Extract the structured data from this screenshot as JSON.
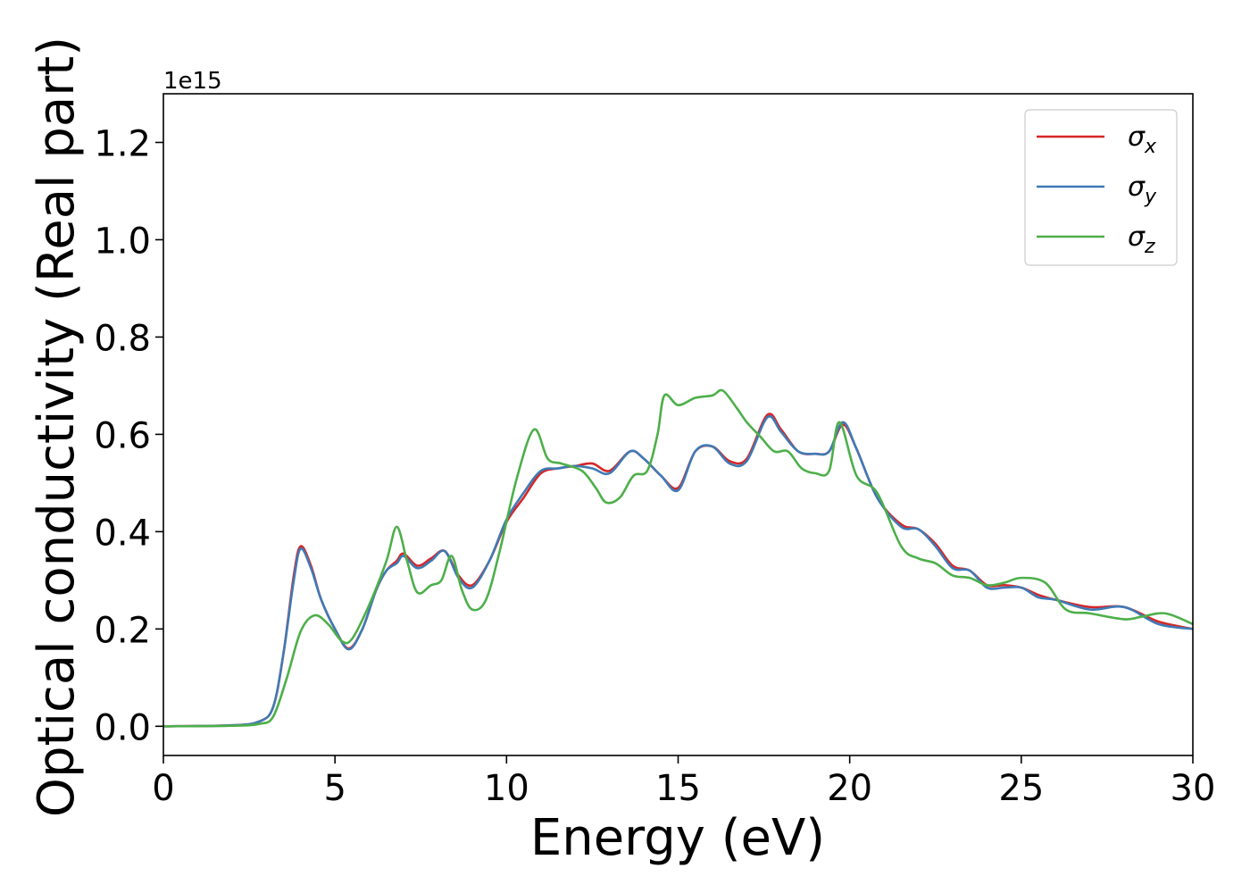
{
  "chart_data": {
    "type": "line",
    "title": "",
    "xlabel": "Energy (eV)",
    "ylabel": "Optical conductivity (Real part)",
    "y_offset_label": "1e15",
    "xlim": [
      0,
      30
    ],
    "ylim": [
      -0.06,
      1.3
    ],
    "x_ticks": [
      0,
      5,
      10,
      15,
      20,
      25,
      30
    ],
    "x_tick_labels": [
      "0",
      "5",
      "10",
      "15",
      "20",
      "25",
      "30"
    ],
    "y_ticks": [
      0.0,
      0.2,
      0.4,
      0.6,
      0.8,
      1.0,
      1.2
    ],
    "y_tick_labels": [
      "0.0",
      "0.2",
      "0.4",
      "0.6",
      "0.8",
      "1.0",
      "1.2"
    ],
    "grid": false,
    "legend_position": "top-right",
    "series": [
      {
        "name": "σx",
        "legend_base": "σ",
        "legend_sub": "x",
        "color": "#d62728",
        "points": [
          [
            0,
            0
          ],
          [
            2,
            0.002
          ],
          [
            2.8,
            0.01
          ],
          [
            3.2,
            0.04
          ],
          [
            3.5,
            0.15
          ],
          [
            3.8,
            0.31
          ],
          [
            4,
            0.37
          ],
          [
            4.3,
            0.33
          ],
          [
            4.6,
            0.26
          ],
          [
            5.0,
            0.2
          ],
          [
            5.4,
            0.16
          ],
          [
            5.8,
            0.2
          ],
          [
            6.2,
            0.28
          ],
          [
            6.5,
            0.32
          ],
          [
            6.8,
            0.34
          ],
          [
            7.0,
            0.355
          ],
          [
            7.4,
            0.33
          ],
          [
            7.8,
            0.345
          ],
          [
            8.2,
            0.36
          ],
          [
            8.6,
            0.31
          ],
          [
            9.0,
            0.29
          ],
          [
            9.5,
            0.34
          ],
          [
            10.0,
            0.42
          ],
          [
            10.5,
            0.47
          ],
          [
            11.0,
            0.52
          ],
          [
            11.5,
            0.53
          ],
          [
            12.0,
            0.535
          ],
          [
            12.5,
            0.54
          ],
          [
            13.0,
            0.525
          ],
          [
            13.6,
            0.565
          ],
          [
            14.0,
            0.55
          ],
          [
            14.5,
            0.515
          ],
          [
            15.0,
            0.49
          ],
          [
            15.5,
            0.565
          ],
          [
            16.0,
            0.575
          ],
          [
            16.5,
            0.545
          ],
          [
            17.0,
            0.55
          ],
          [
            17.6,
            0.64
          ],
          [
            18.0,
            0.61
          ],
          [
            18.5,
            0.565
          ],
          [
            19.0,
            0.56
          ],
          [
            19.4,
            0.565
          ],
          [
            19.8,
            0.62
          ],
          [
            20.2,
            0.57
          ],
          [
            20.8,
            0.47
          ],
          [
            21.5,
            0.415
          ],
          [
            22.0,
            0.405
          ],
          [
            22.5,
            0.375
          ],
          [
            23.0,
            0.33
          ],
          [
            23.5,
            0.32
          ],
          [
            24.0,
            0.29
          ],
          [
            24.5,
            0.29
          ],
          [
            25.0,
            0.285
          ],
          [
            25.5,
            0.27
          ],
          [
            26.0,
            0.26
          ],
          [
            27.0,
            0.245
          ],
          [
            28.0,
            0.245
          ],
          [
            29.0,
            0.215
          ],
          [
            30.0,
            0.2
          ]
        ]
      },
      {
        "name": "σy",
        "legend_base": "σ",
        "legend_sub": "y",
        "color": "#3f7ab5",
        "points": [
          [
            0,
            0
          ],
          [
            2,
            0.002
          ],
          [
            2.8,
            0.01
          ],
          [
            3.2,
            0.04
          ],
          [
            3.5,
            0.15
          ],
          [
            3.8,
            0.3
          ],
          [
            4,
            0.365
          ],
          [
            4.3,
            0.325
          ],
          [
            4.6,
            0.26
          ],
          [
            5.0,
            0.2
          ],
          [
            5.4,
            0.158
          ],
          [
            5.8,
            0.2
          ],
          [
            6.2,
            0.28
          ],
          [
            6.5,
            0.32
          ],
          [
            6.8,
            0.335
          ],
          [
            7.0,
            0.35
          ],
          [
            7.4,
            0.325
          ],
          [
            7.8,
            0.34
          ],
          [
            8.2,
            0.36
          ],
          [
            8.6,
            0.305
          ],
          [
            9.0,
            0.285
          ],
          [
            9.5,
            0.34
          ],
          [
            10.0,
            0.425
          ],
          [
            10.5,
            0.48
          ],
          [
            11.0,
            0.525
          ],
          [
            11.5,
            0.53
          ],
          [
            12.0,
            0.535
          ],
          [
            12.5,
            0.53
          ],
          [
            13.0,
            0.52
          ],
          [
            13.6,
            0.565
          ],
          [
            14.0,
            0.55
          ],
          [
            14.5,
            0.515
          ],
          [
            15.0,
            0.485
          ],
          [
            15.5,
            0.565
          ],
          [
            16.0,
            0.575
          ],
          [
            16.5,
            0.54
          ],
          [
            17.0,
            0.545
          ],
          [
            17.6,
            0.635
          ],
          [
            18.0,
            0.605
          ],
          [
            18.5,
            0.565
          ],
          [
            19.0,
            0.56
          ],
          [
            19.4,
            0.565
          ],
          [
            19.8,
            0.625
          ],
          [
            20.2,
            0.57
          ],
          [
            20.8,
            0.47
          ],
          [
            21.5,
            0.41
          ],
          [
            22.0,
            0.405
          ],
          [
            22.5,
            0.37
          ],
          [
            23.0,
            0.325
          ],
          [
            23.5,
            0.32
          ],
          [
            24.0,
            0.285
          ],
          [
            24.5,
            0.285
          ],
          [
            25.0,
            0.285
          ],
          [
            25.5,
            0.265
          ],
          [
            26.0,
            0.26
          ],
          [
            27.0,
            0.24
          ],
          [
            28.0,
            0.245
          ],
          [
            29.0,
            0.21
          ],
          [
            30.0,
            0.2
          ]
        ]
      },
      {
        "name": "σz",
        "legend_base": "σ",
        "legend_sub": "z",
        "color": "#4daf4a",
        "points": [
          [
            0,
            0
          ],
          [
            2,
            0.001
          ],
          [
            2.8,
            0.005
          ],
          [
            3.2,
            0.02
          ],
          [
            3.6,
            0.1
          ],
          [
            4.0,
            0.195
          ],
          [
            4.4,
            0.228
          ],
          [
            4.8,
            0.21
          ],
          [
            5.2,
            0.175
          ],
          [
            5.5,
            0.18
          ],
          [
            6.0,
            0.25
          ],
          [
            6.5,
            0.34
          ],
          [
            6.8,
            0.41
          ],
          [
            7.1,
            0.34
          ],
          [
            7.4,
            0.275
          ],
          [
            7.8,
            0.29
          ],
          [
            8.1,
            0.3
          ],
          [
            8.4,
            0.35
          ],
          [
            8.7,
            0.28
          ],
          [
            9.0,
            0.24
          ],
          [
            9.4,
            0.26
          ],
          [
            9.8,
            0.36
          ],
          [
            10.3,
            0.51
          ],
          [
            10.8,
            0.61
          ],
          [
            11.2,
            0.55
          ],
          [
            11.6,
            0.54
          ],
          [
            12.2,
            0.525
          ],
          [
            12.6,
            0.49
          ],
          [
            12.9,
            0.46
          ],
          [
            13.3,
            0.47
          ],
          [
            13.7,
            0.515
          ],
          [
            14.1,
            0.525
          ],
          [
            14.4,
            0.6
          ],
          [
            14.6,
            0.68
          ],
          [
            15.0,
            0.66
          ],
          [
            15.5,
            0.675
          ],
          [
            16.0,
            0.68
          ],
          [
            16.3,
            0.69
          ],
          [
            16.7,
            0.655
          ],
          [
            17.0,
            0.625
          ],
          [
            17.4,
            0.595
          ],
          [
            17.8,
            0.565
          ],
          [
            18.2,
            0.565
          ],
          [
            18.6,
            0.53
          ],
          [
            19.0,
            0.52
          ],
          [
            19.4,
            0.525
          ],
          [
            19.7,
            0.625
          ],
          [
            20.2,
            0.515
          ],
          [
            20.8,
            0.48
          ],
          [
            21.5,
            0.37
          ],
          [
            22.0,
            0.345
          ],
          [
            22.5,
            0.335
          ],
          [
            23.0,
            0.31
          ],
          [
            23.5,
            0.305
          ],
          [
            24.0,
            0.29
          ],
          [
            24.5,
            0.295
          ],
          [
            25.0,
            0.305
          ],
          [
            25.7,
            0.295
          ],
          [
            26.3,
            0.24
          ],
          [
            27.0,
            0.232
          ],
          [
            28.0,
            0.22
          ],
          [
            28.5,
            0.225
          ],
          [
            29.2,
            0.232
          ],
          [
            30.0,
            0.21
          ]
        ]
      }
    ]
  }
}
